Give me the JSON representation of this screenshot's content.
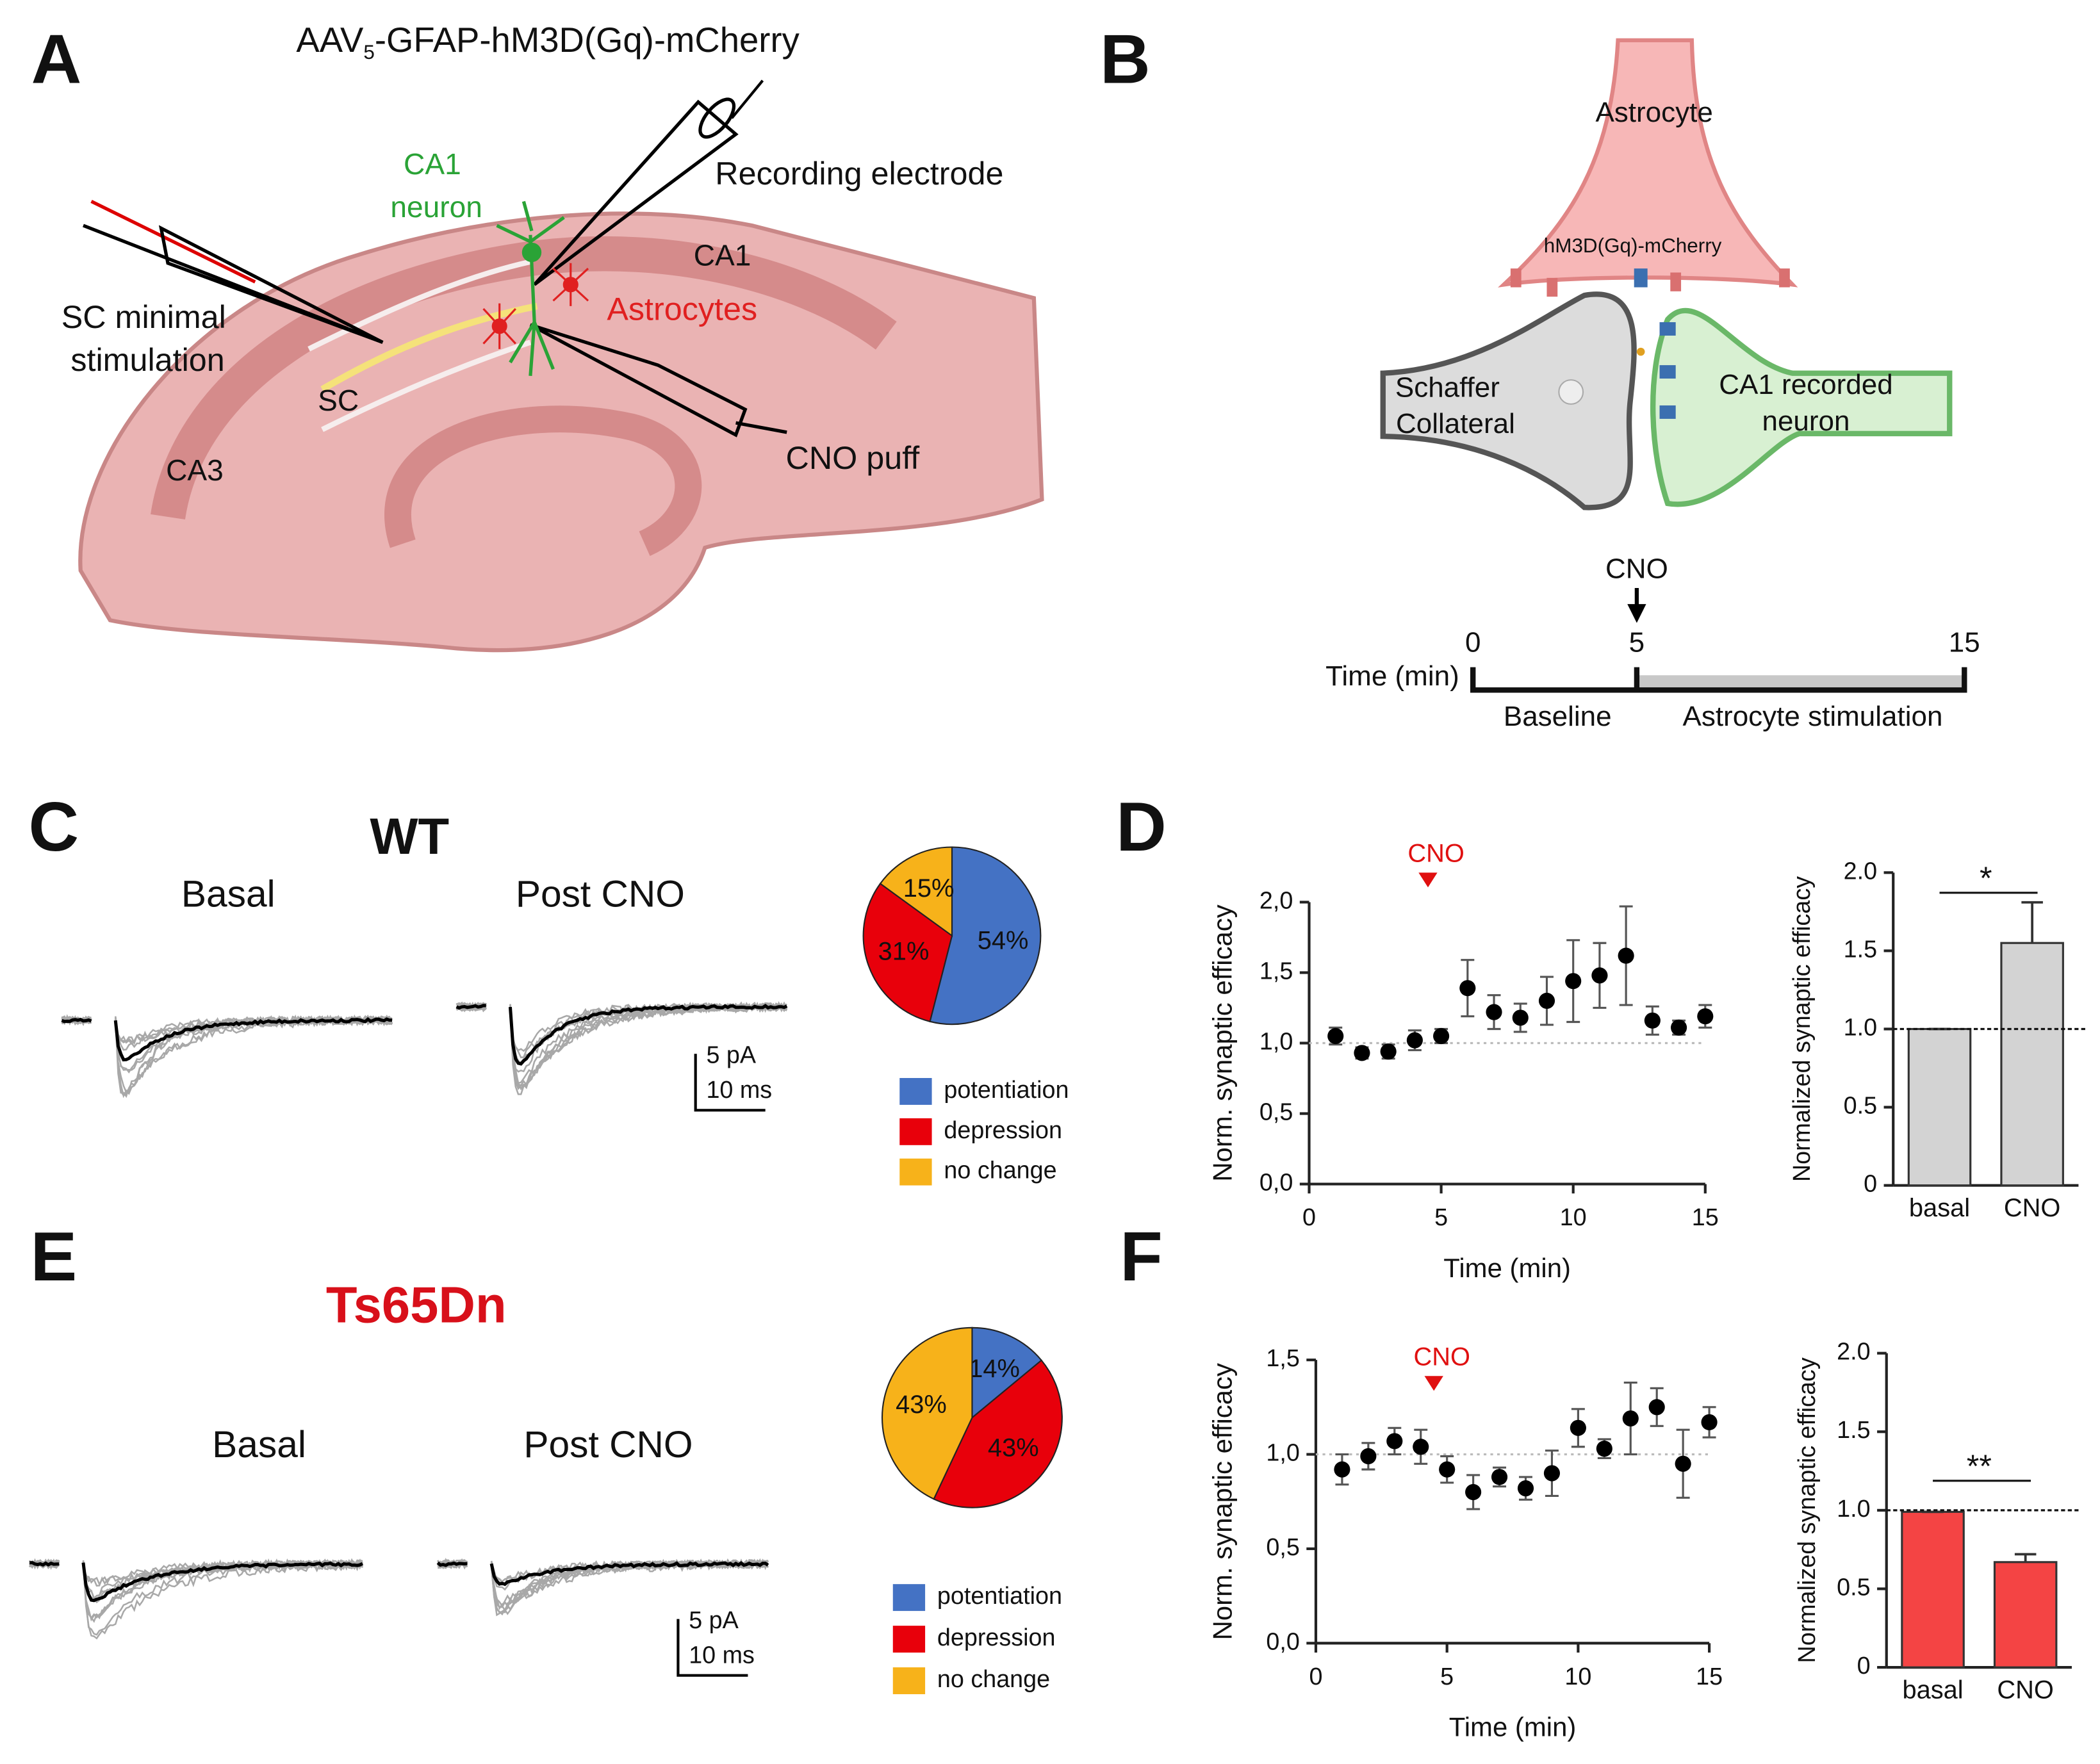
{
  "figure": {
    "panel_labels": [
      "A",
      "B",
      "C",
      "D",
      "E",
      "F"
    ],
    "panel_a": {
      "title": [
        "AAV",
        "5",
        "-GFAP-hM3D(Gq)-mCherry"
      ],
      "labels": {
        "ca1_neuron": [
          "CA1",
          "neuron"
        ],
        "recording": "Recording electrode",
        "ca1": "CA1",
        "astrocytes": "Astrocytes",
        "sc_stim": [
          "SC minimal",
          "stimulation"
        ],
        "sc": "SC",
        "ca3": "CA3",
        "cno_puff": "CNO puff"
      }
    },
    "panel_b": {
      "astrocyte": "Astrocyte",
      "receptor": "hM3D(Gq)-mCherry",
      "presynaptic": [
        "Schaffer",
        "Collateral"
      ],
      "postsynaptic": [
        "CA1 recorded",
        "neuron"
      ],
      "drug": "CNO",
      "timeline": {
        "label": "Time (min)",
        "ticks": [
          0,
          5,
          15
        ],
        "phases": [
          "Baseline",
          "Astrocyte stimulation"
        ]
      }
    },
    "panel_c": {
      "genotype": "WT",
      "conditions": [
        "Basal",
        "Post CNO"
      ],
      "scale": [
        "5 pA",
        "10 ms"
      ]
    },
    "panel_e": {
      "genotype": "Ts65Dn",
      "conditions": [
        "Basal",
        "Post CNO"
      ],
      "scale": [
        "5 pA",
        "10 ms"
      ]
    }
  },
  "chart_data": [
    {
      "type": "pie",
      "categories": [
        "potentiation",
        "depression",
        "no change"
      ],
      "values": [
        54,
        31,
        15
      ],
      "value_labels": [
        "54%",
        "31%",
        "15%"
      ],
      "colors": [
        "#4472c4",
        "#e8000b",
        "#f7b21a"
      ]
    },
    {
      "type": "pie",
      "categories": [
        "potentiation",
        "depression",
        "no change"
      ],
      "values": [
        14,
        43,
        43
      ],
      "value_labels": [
        "14%",
        "43%",
        "43%"
      ],
      "colors": [
        "#4472c4",
        "#e8000b",
        "#f7b21a"
      ]
    },
    {
      "type": "scatter",
      "x": [
        1,
        2,
        3,
        4,
        5,
        6,
        7,
        8,
        9,
        10,
        11,
        12,
        13,
        14,
        15
      ],
      "values": [
        1.05,
        0.93,
        0.94,
        1.02,
        1.05,
        1.39,
        1.22,
        1.18,
        1.3,
        1.44,
        1.48,
        1.62,
        1.16,
        1.11,
        1.19
      ],
      "errors": [
        0.06,
        0.04,
        0.05,
        0.07,
        0.05,
        0.2,
        0.12,
        0.1,
        0.17,
        0.29,
        0.23,
        0.35,
        0.1,
        0.05,
        0.08
      ],
      "xlim": [
        0,
        15
      ],
      "xticks": [
        0,
        5,
        10,
        15
      ],
      "ylim": [
        0,
        2
      ],
      "yticks": [
        {
          "value": 0,
          "label": "0,0"
        },
        {
          "value": 0.5,
          "label": "0,5"
        },
        {
          "value": 1,
          "label": "1,0"
        },
        {
          "value": 1.5,
          "label": "1,5"
        },
        {
          "value": 2,
          "label": "2,0"
        }
      ],
      "xlabel": "Time (min)",
      "ylabel": "Norm. synaptic efficacy",
      "reference_line": 1,
      "annotation": {
        "text": "CNO",
        "x": 4.5
      },
      "color": "#000000"
    },
    {
      "type": "bar",
      "categories": [
        "basal",
        "CNO"
      ],
      "values": [
        1.0,
        1.55
      ],
      "errors": [
        0,
        0.26
      ],
      "ylim": [
        0,
        2
      ],
      "yticks": [
        0,
        0.5,
        {
          "value": 1,
          "label": "1.0"
        },
        1.5,
        {
          "value": 2,
          "label": "2.0"
        }
      ],
      "ylabel": "Normalized synaptic efficacy",
      "reference_line": 1,
      "significance": "*",
      "color": "#d3d3d3"
    },
    {
      "type": "scatter",
      "x": [
        1,
        2,
        3,
        4,
        5,
        6,
        7,
        8,
        9,
        10,
        11,
        12,
        13,
        14,
        15
      ],
      "values": [
        0.92,
        0.99,
        1.07,
        1.04,
        0.92,
        0.8,
        0.88,
        0.82,
        0.9,
        1.14,
        1.03,
        1.19,
        1.25,
        0.95,
        1.17
      ],
      "errors": [
        0.08,
        0.07,
        0.07,
        0.09,
        0.07,
        0.09,
        0.05,
        0.06,
        0.12,
        0.1,
        0.05,
        0.19,
        0.1,
        0.18,
        0.08
      ],
      "xlim": [
        0,
        15
      ],
      "xticks": [
        0,
        5,
        10,
        15
      ],
      "ylim": [
        0,
        1.5
      ],
      "yticks": [
        {
          "value": 0,
          "label": "0,0"
        },
        {
          "value": 0.5,
          "label": "0,5"
        },
        {
          "value": 1,
          "label": "1,0"
        },
        {
          "value": 1.5,
          "label": "1,5"
        }
      ],
      "xlabel": "Time (min)",
      "ylabel": "Norm. synaptic efficacy",
      "reference_line": 1,
      "annotation": {
        "text": "CNO",
        "x": 4.5
      },
      "color": "#000000"
    },
    {
      "type": "bar",
      "categories": [
        "basal",
        "CNO"
      ],
      "values": [
        0.99,
        0.67
      ],
      "errors": [
        0,
        0.05
      ],
      "ylim": [
        0,
        2
      ],
      "yticks": [
        0,
        0.5,
        {
          "value": 1,
          "label": "1.0"
        },
        1.5,
        {
          "value": 2,
          "label": "2.0"
        }
      ],
      "ylabel": "Normalized synaptic efficacy",
      "reference_line": 1,
      "significance": "**",
      "color": "#f44444"
    }
  ]
}
